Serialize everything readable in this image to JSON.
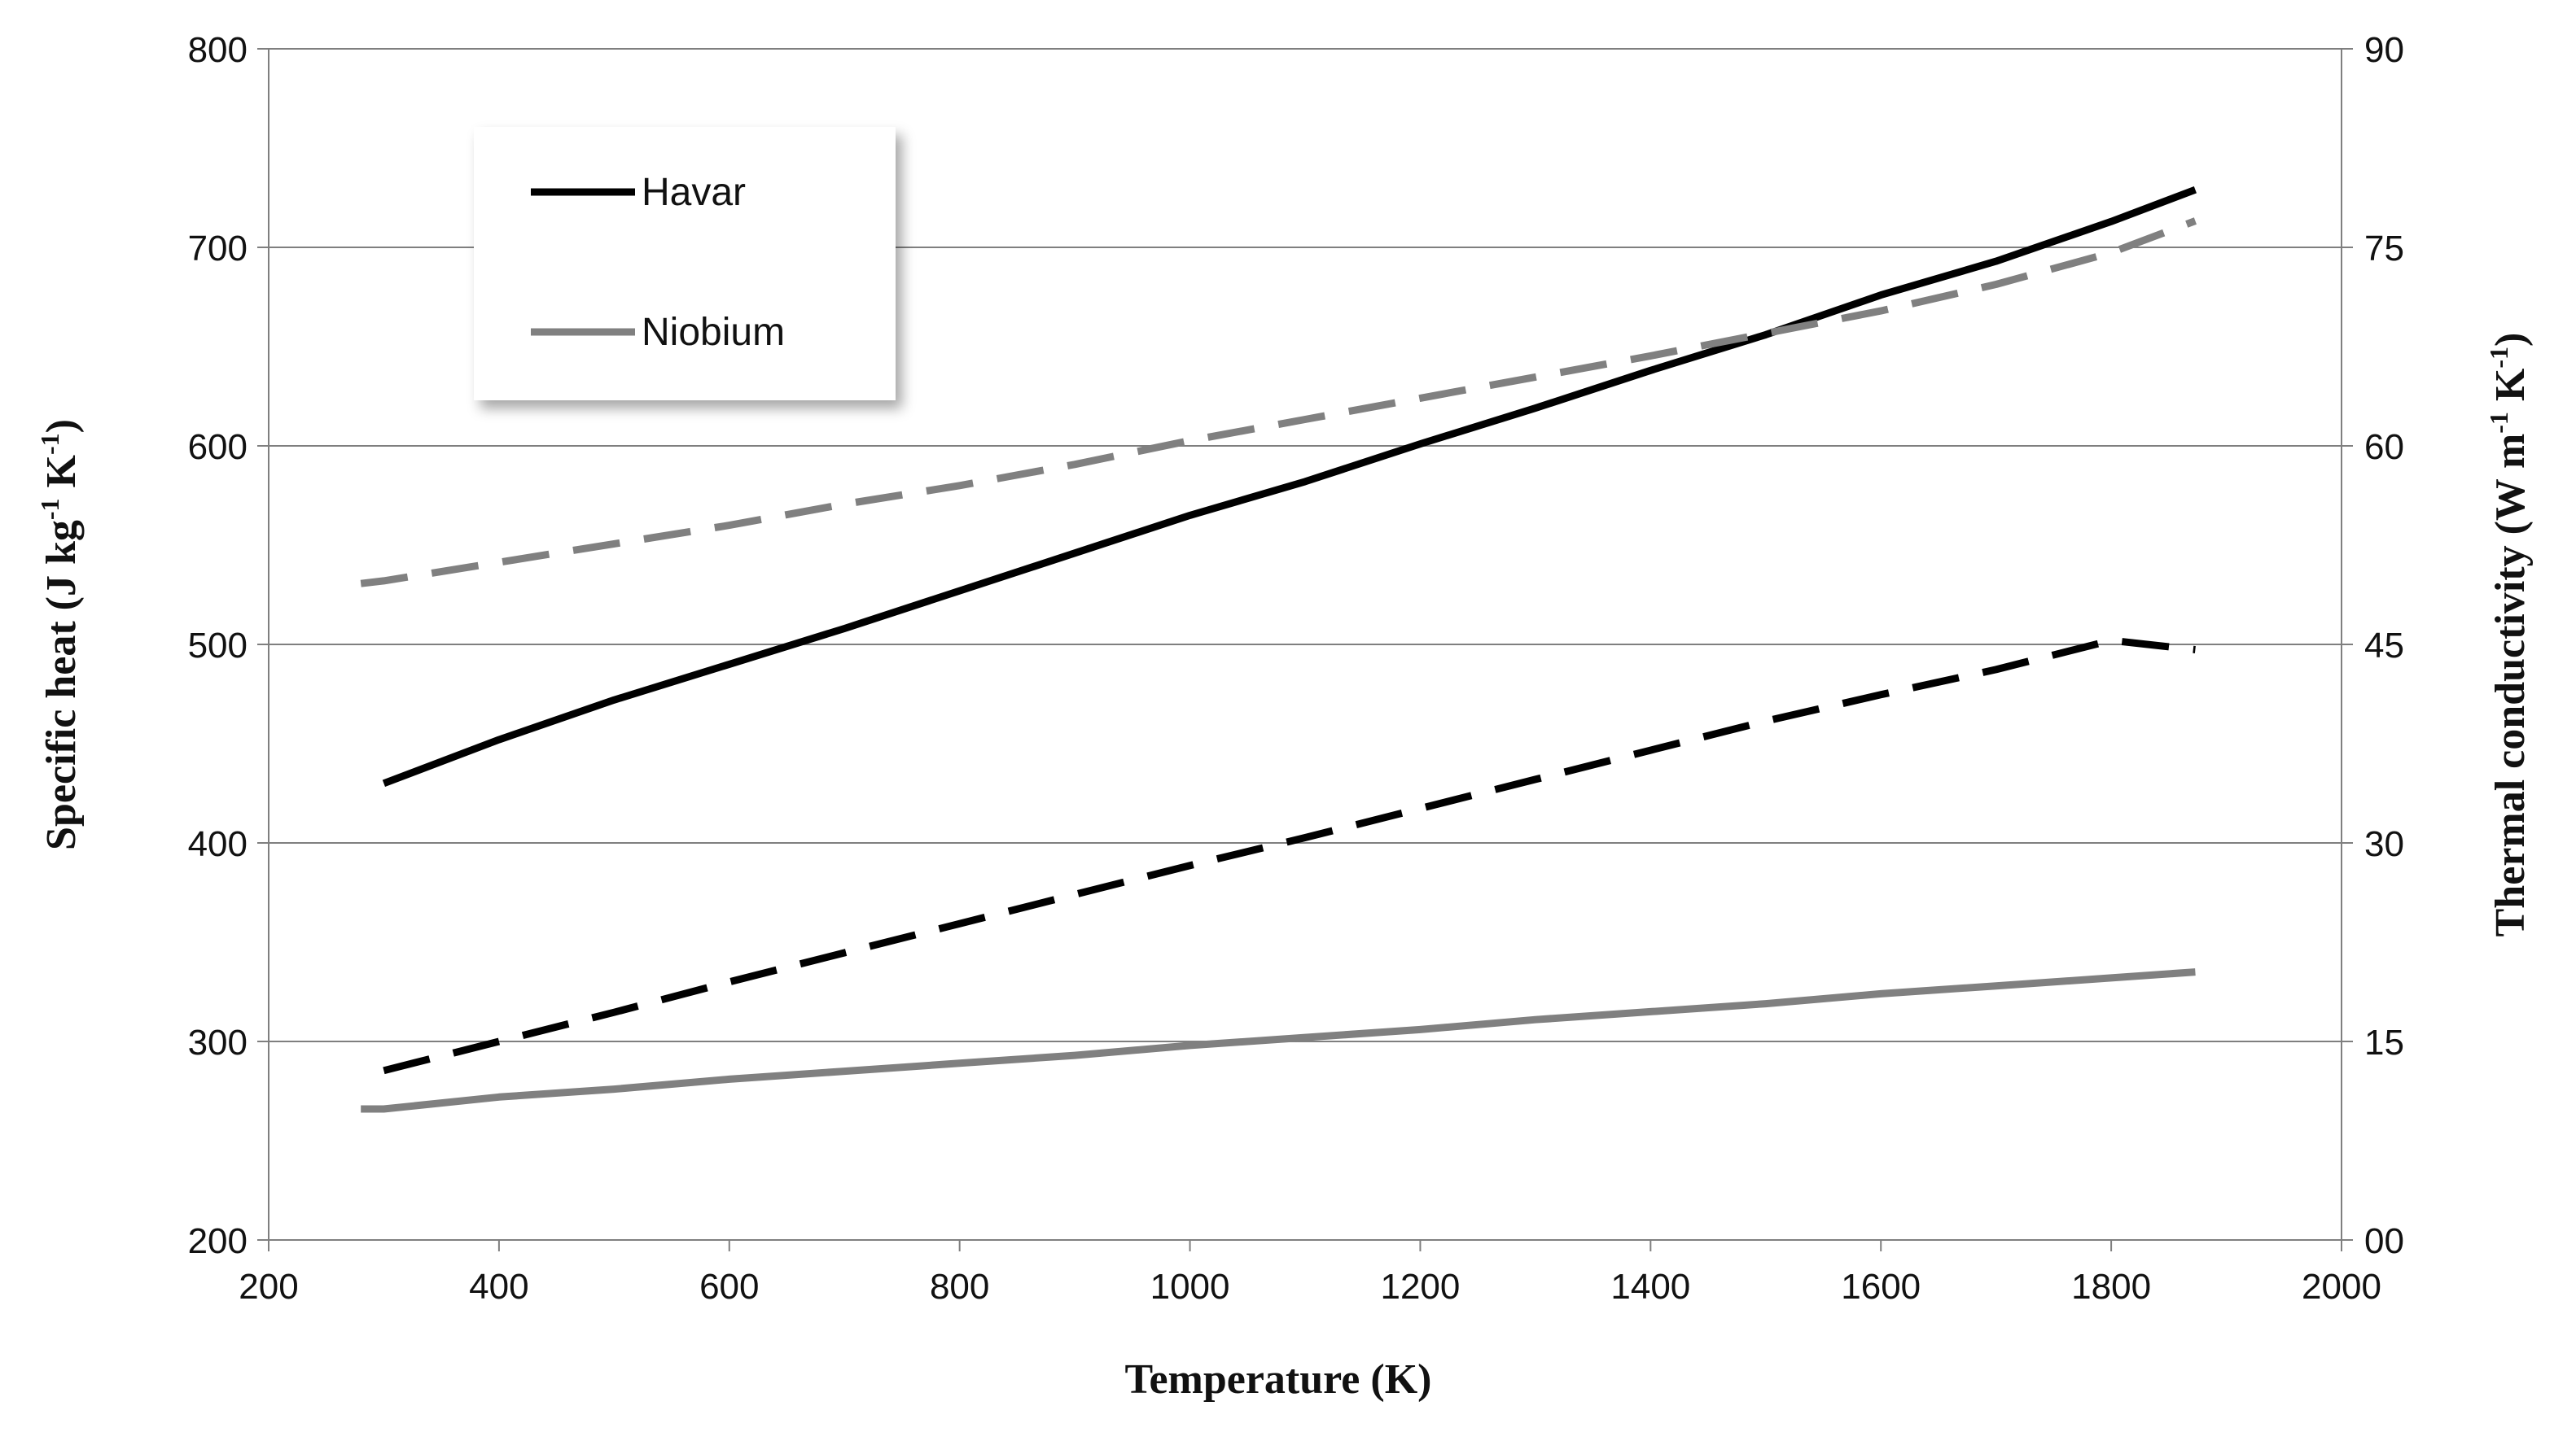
{
  "chart_data": {
    "type": "line",
    "x": [
      280,
      300,
      400,
      500,
      600,
      700,
      800,
      900,
      1000,
      1100,
      1200,
      1300,
      1400,
      1500,
      1600,
      1700,
      1800,
      1873
    ],
    "xlabel": "Temperature  (K)",
    "xlim": [
      200,
      2000
    ],
    "xticks": [
      "200",
      "400",
      "600",
      "800",
      "1000",
      "1200",
      "1400",
      "1600",
      "1800",
      "2000"
    ],
    "ylabel_left": {
      "base": "Specific heat (J kg",
      "exp1": "-1",
      "mid": " K",
      "exp2": "-1",
      "end": ")"
    },
    "ylim_left": [
      200,
      800
    ],
    "yticks_left": [
      "200",
      "300",
      "400",
      "500",
      "600",
      "700",
      "800"
    ],
    "ylabel_right": {
      "base": "Thermal conductivity (W m",
      "exp1": "-1",
      "mid": " K",
      "exp2": "-1",
      "end": ")"
    },
    "ylim_right": [
      0,
      90
    ],
    "yticks_right": [
      "00",
      "15",
      "30",
      "45",
      "60",
      "75",
      "90"
    ],
    "grid": true,
    "legend_position": "top-left",
    "legend": [
      {
        "name": "Havar",
        "color": "#000000"
      },
      {
        "name": "Niobium",
        "color": "#808080"
      }
    ],
    "series": [
      {
        "name": "Havar",
        "quantity": "Specific heat",
        "axis": "left",
        "style": "solid",
        "color": "#000000",
        "x": [
          300,
          400,
          500,
          600,
          700,
          800,
          900,
          1000,
          1100,
          1200,
          1300,
          1400,
          1500,
          1600,
          1700,
          1800,
          1873
        ],
        "values": [
          430,
          452,
          472,
          490,
          508,
          527,
          546,
          565,
          582,
          601,
          619,
          638,
          656,
          676,
          693,
          713,
          729
        ]
      },
      {
        "name": "Havar",
        "quantity": "Thermal conductivity",
        "axis": "right",
        "style": "dashed",
        "color": "#000000",
        "x": [
          300,
          400,
          500,
          600,
          700,
          800,
          900,
          1000,
          1100,
          1200,
          1300,
          1400,
          1500,
          1600,
          1700,
          1800,
          1873
        ],
        "values": [
          12.8,
          15.0,
          17.2,
          19.5,
          21.7,
          23.9,
          26.1,
          28.3,
          30.4,
          32.6,
          34.8,
          37.0,
          39.2,
          41.2,
          43.1,
          45.3,
          44.6
        ]
      },
      {
        "name": "Niobium",
        "quantity": "Specific heat",
        "axis": "left",
        "style": "solid",
        "color": "#808080",
        "x": [
          280,
          300,
          400,
          500,
          600,
          700,
          800,
          900,
          1000,
          1100,
          1200,
          1300,
          1400,
          1500,
          1600,
          1700,
          1800,
          1873
        ],
        "values": [
          266,
          266,
          272,
          276,
          281,
          285,
          289,
          293,
          298,
          302,
          306,
          311,
          315,
          319,
          324,
          328,
          332,
          335
        ]
      },
      {
        "name": "Niobium",
        "quantity": "Thermal conductivity",
        "axis": "right",
        "style": "dashed",
        "color": "#808080",
        "x": [
          280,
          300,
          400,
          500,
          600,
          700,
          800,
          900,
          1000,
          1100,
          1200,
          1300,
          1400,
          1500,
          1600,
          1700,
          1800,
          1873
        ],
        "values": [
          49.6,
          49.8,
          51.2,
          52.6,
          54.0,
          55.6,
          57.0,
          58.6,
          60.4,
          62.0,
          63.6,
          65.2,
          66.8,
          68.5,
          70.2,
          72.2,
          74.6,
          77.0
        ]
      }
    ]
  }
}
